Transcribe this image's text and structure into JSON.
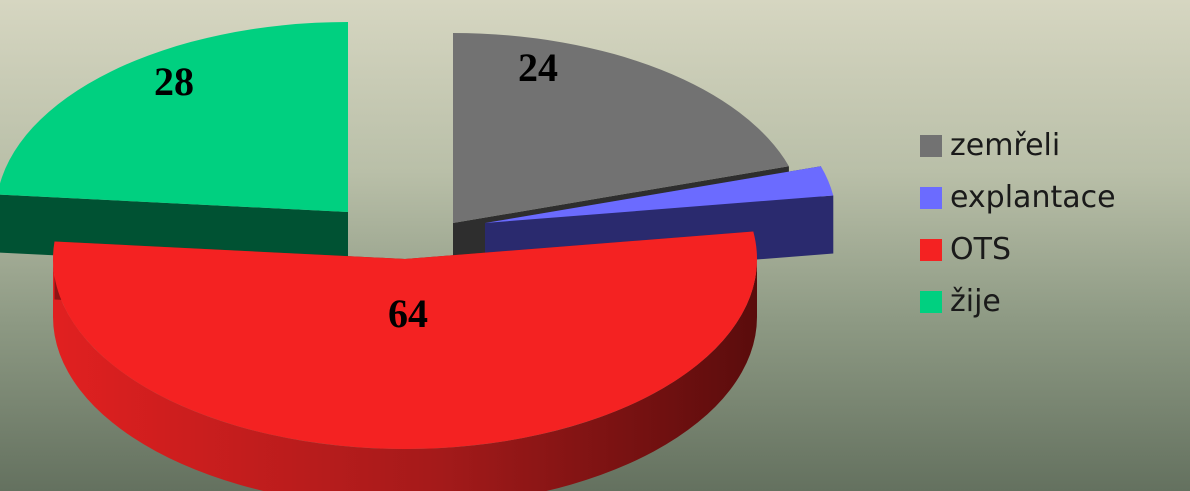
{
  "chart_data": {
    "type": "pie",
    "style": "3d-exploded",
    "title": "",
    "categories": [
      "zemřeli",
      "explantace",
      "OTS",
      "žije"
    ],
    "values": [
      24,
      3,
      64,
      28
    ],
    "data_labels": [
      "24",
      "",
      "64",
      "28"
    ],
    "colors": [
      "#727272",
      "#6b6bff",
      "#f42222",
      "#00d080"
    ],
    "side_colors": [
      "#2e2e2e",
      "#2a2a6e",
      "#8e1414",
      "#005233"
    ],
    "legend_position": "right"
  }
}
